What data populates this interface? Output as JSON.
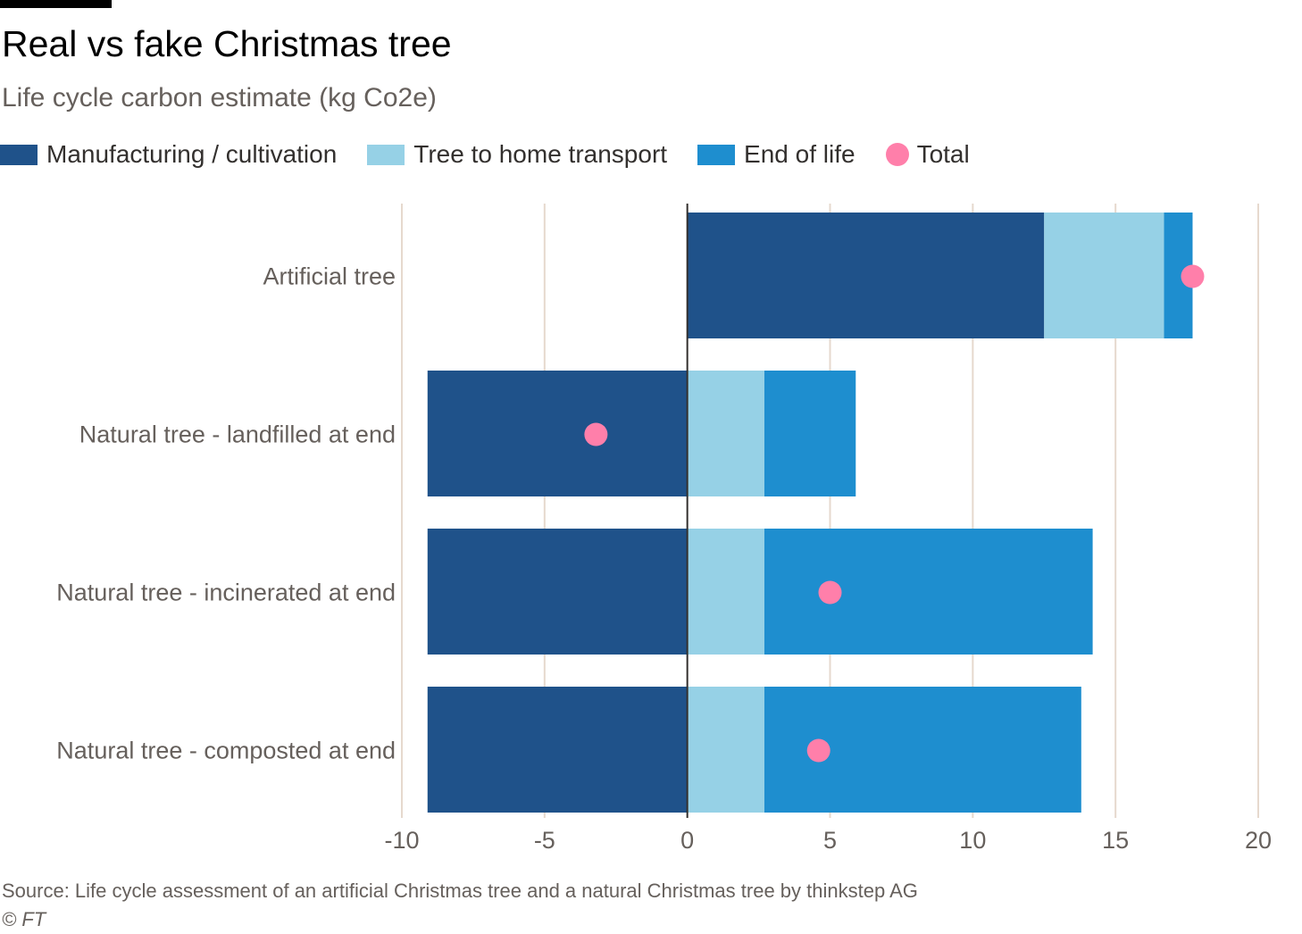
{
  "header": {
    "title": "Real vs fake Christmas tree",
    "subtitle": "Life cycle carbon estimate (kg Co2e)"
  },
  "legend": [
    {
      "label": "Manufacturing / cultivation",
      "color": "#1f528a",
      "shape": "square"
    },
    {
      "label": "Tree to home transport",
      "color": "#96d1e6",
      "shape": "square"
    },
    {
      "label": "End of life",
      "color": "#1e8ecf",
      "shape": "square"
    },
    {
      "label": "Total",
      "color": "#ff7faa",
      "shape": "circle"
    }
  ],
  "footer": {
    "source": "Source: Life cycle assessment of an artificial Christmas tree and a natural Christmas tree by thinkstep AG",
    "credit": "© FT"
  },
  "chart_data": {
    "type": "bar",
    "orientation": "horizontal",
    "stacked": true,
    "categories": [
      "Artificial tree",
      "Natural tree - landfilled at end",
      "Natural tree - incinerated at end",
      "Natural tree - composted at end"
    ],
    "series": [
      {
        "name": "Manufacturing / cultivation",
        "values": [
          12.5,
          -9.1,
          -9.1,
          -9.1
        ],
        "color": "#1f528a"
      },
      {
        "name": "Tree to home transport",
        "values": [
          4.2,
          2.7,
          2.7,
          2.7
        ],
        "color": "#96d1e6"
      },
      {
        "name": "End of life",
        "values": [
          1.0,
          3.2,
          11.5,
          11.1
        ],
        "color": "#1e8ecf"
      }
    ],
    "total": {
      "name": "Total",
      "values": [
        17.7,
        -3.2,
        5.0,
        4.6
      ],
      "color": "#ff7faa"
    },
    "xlim": [
      -10,
      20
    ],
    "xticks": [
      "-10",
      "-5",
      "0",
      "5",
      "10",
      "15",
      "20"
    ],
    "xtick_values": [
      -10,
      -5,
      0,
      5,
      10,
      15,
      20
    ],
    "grid": "vertical",
    "legend_position": "top"
  }
}
